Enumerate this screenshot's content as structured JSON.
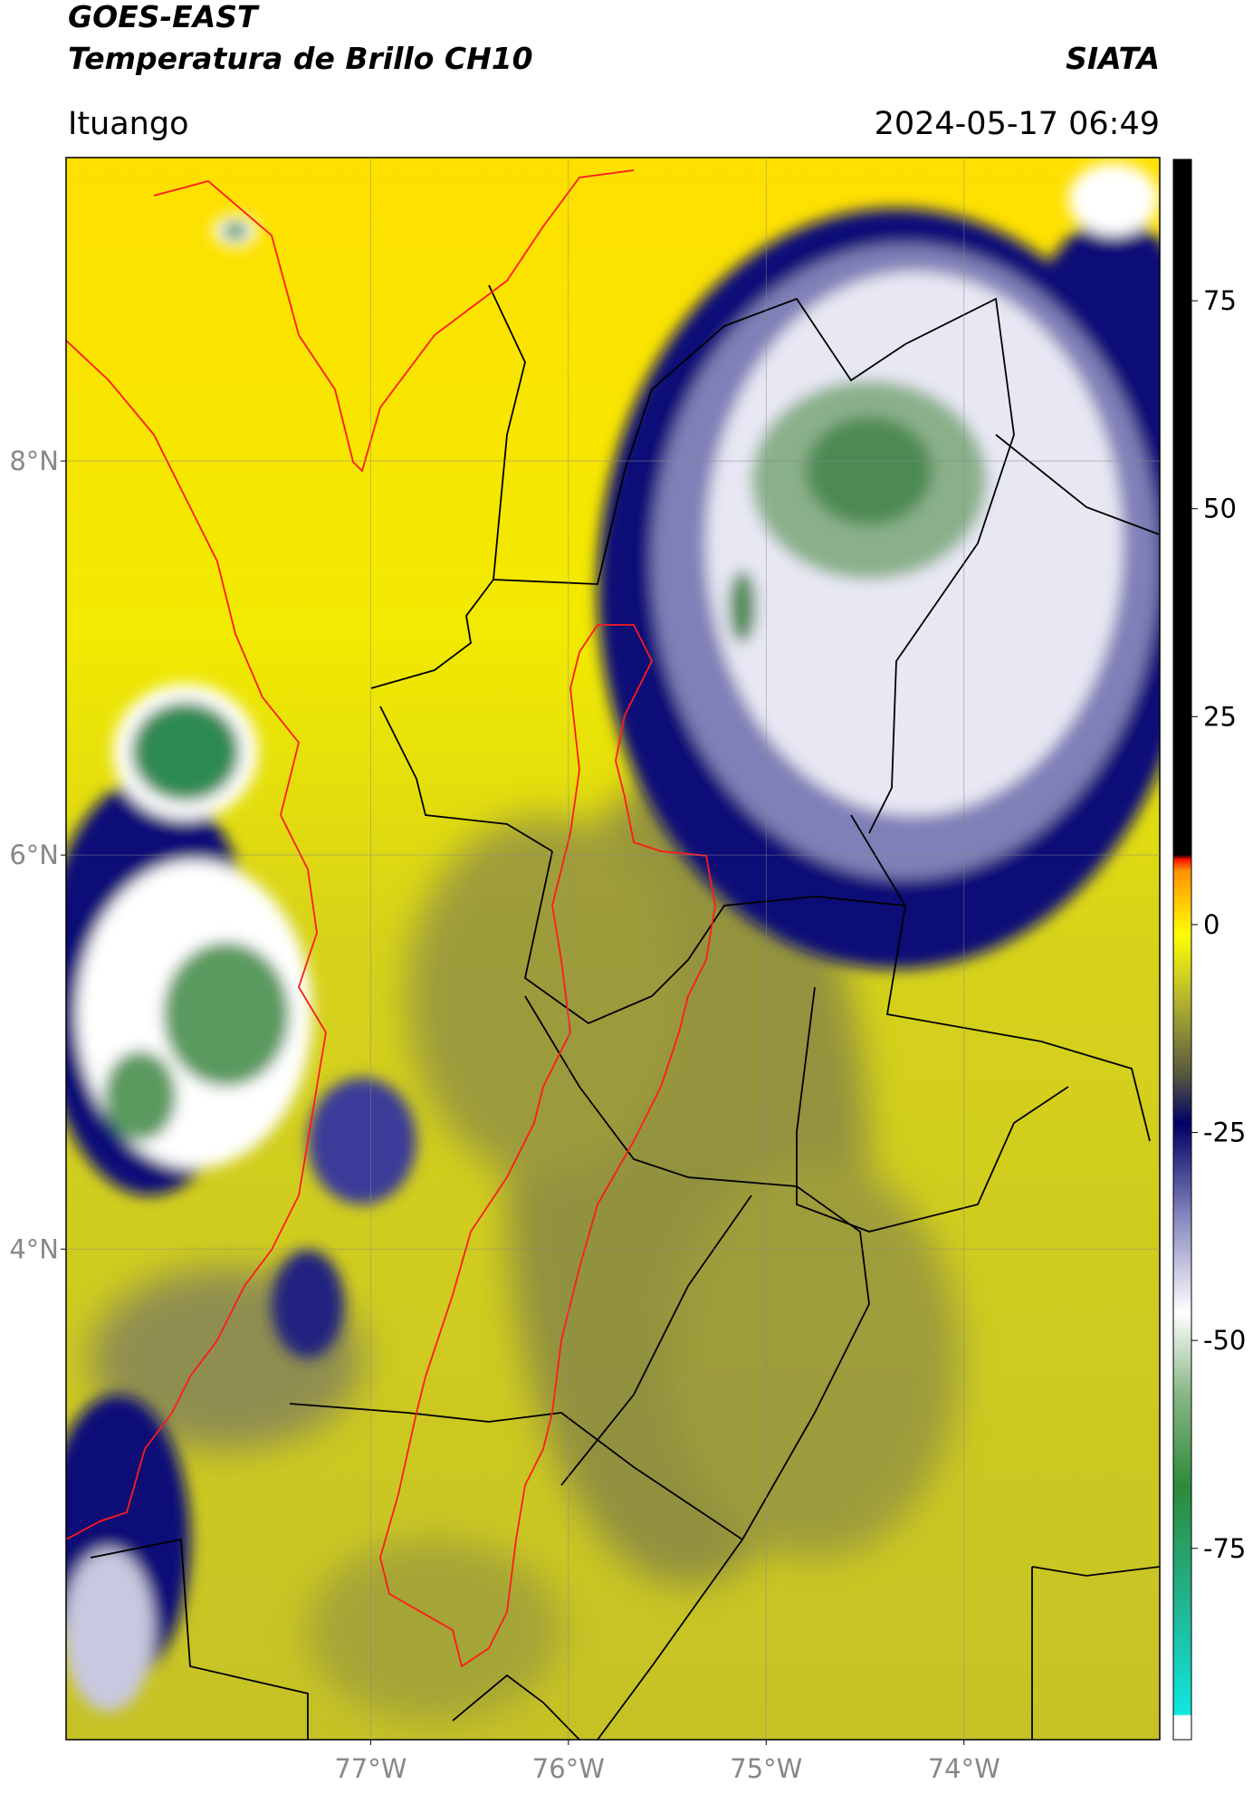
{
  "header": {
    "title": "GOES-EAST",
    "subtitle": "Temperatura de Brillo CH10",
    "source": "SIATA",
    "location": "Ituango",
    "datetime": "2024-05-17 06:49"
  },
  "map": {
    "xlim": [
      -78.54,
      -73.01
    ],
    "ylim": [
      1.51,
      9.54
    ],
    "xticks": [
      {
        "value": -77,
        "label": "77°W"
      },
      {
        "value": -76,
        "label": "76°W"
      },
      {
        "value": -75,
        "label": "75°W"
      },
      {
        "value": -74,
        "label": "74°W"
      }
    ],
    "yticks": [
      {
        "value": 8,
        "label": "8°N"
      },
      {
        "value": 6,
        "label": "6°N"
      },
      {
        "value": 4,
        "label": "4°N"
      }
    ],
    "grid": true
  },
  "colorbar": {
    "clim": [
      -98,
      92
    ],
    "ticks": [
      75,
      50,
      25,
      0,
      -25,
      -50,
      -75
    ]
  }
}
